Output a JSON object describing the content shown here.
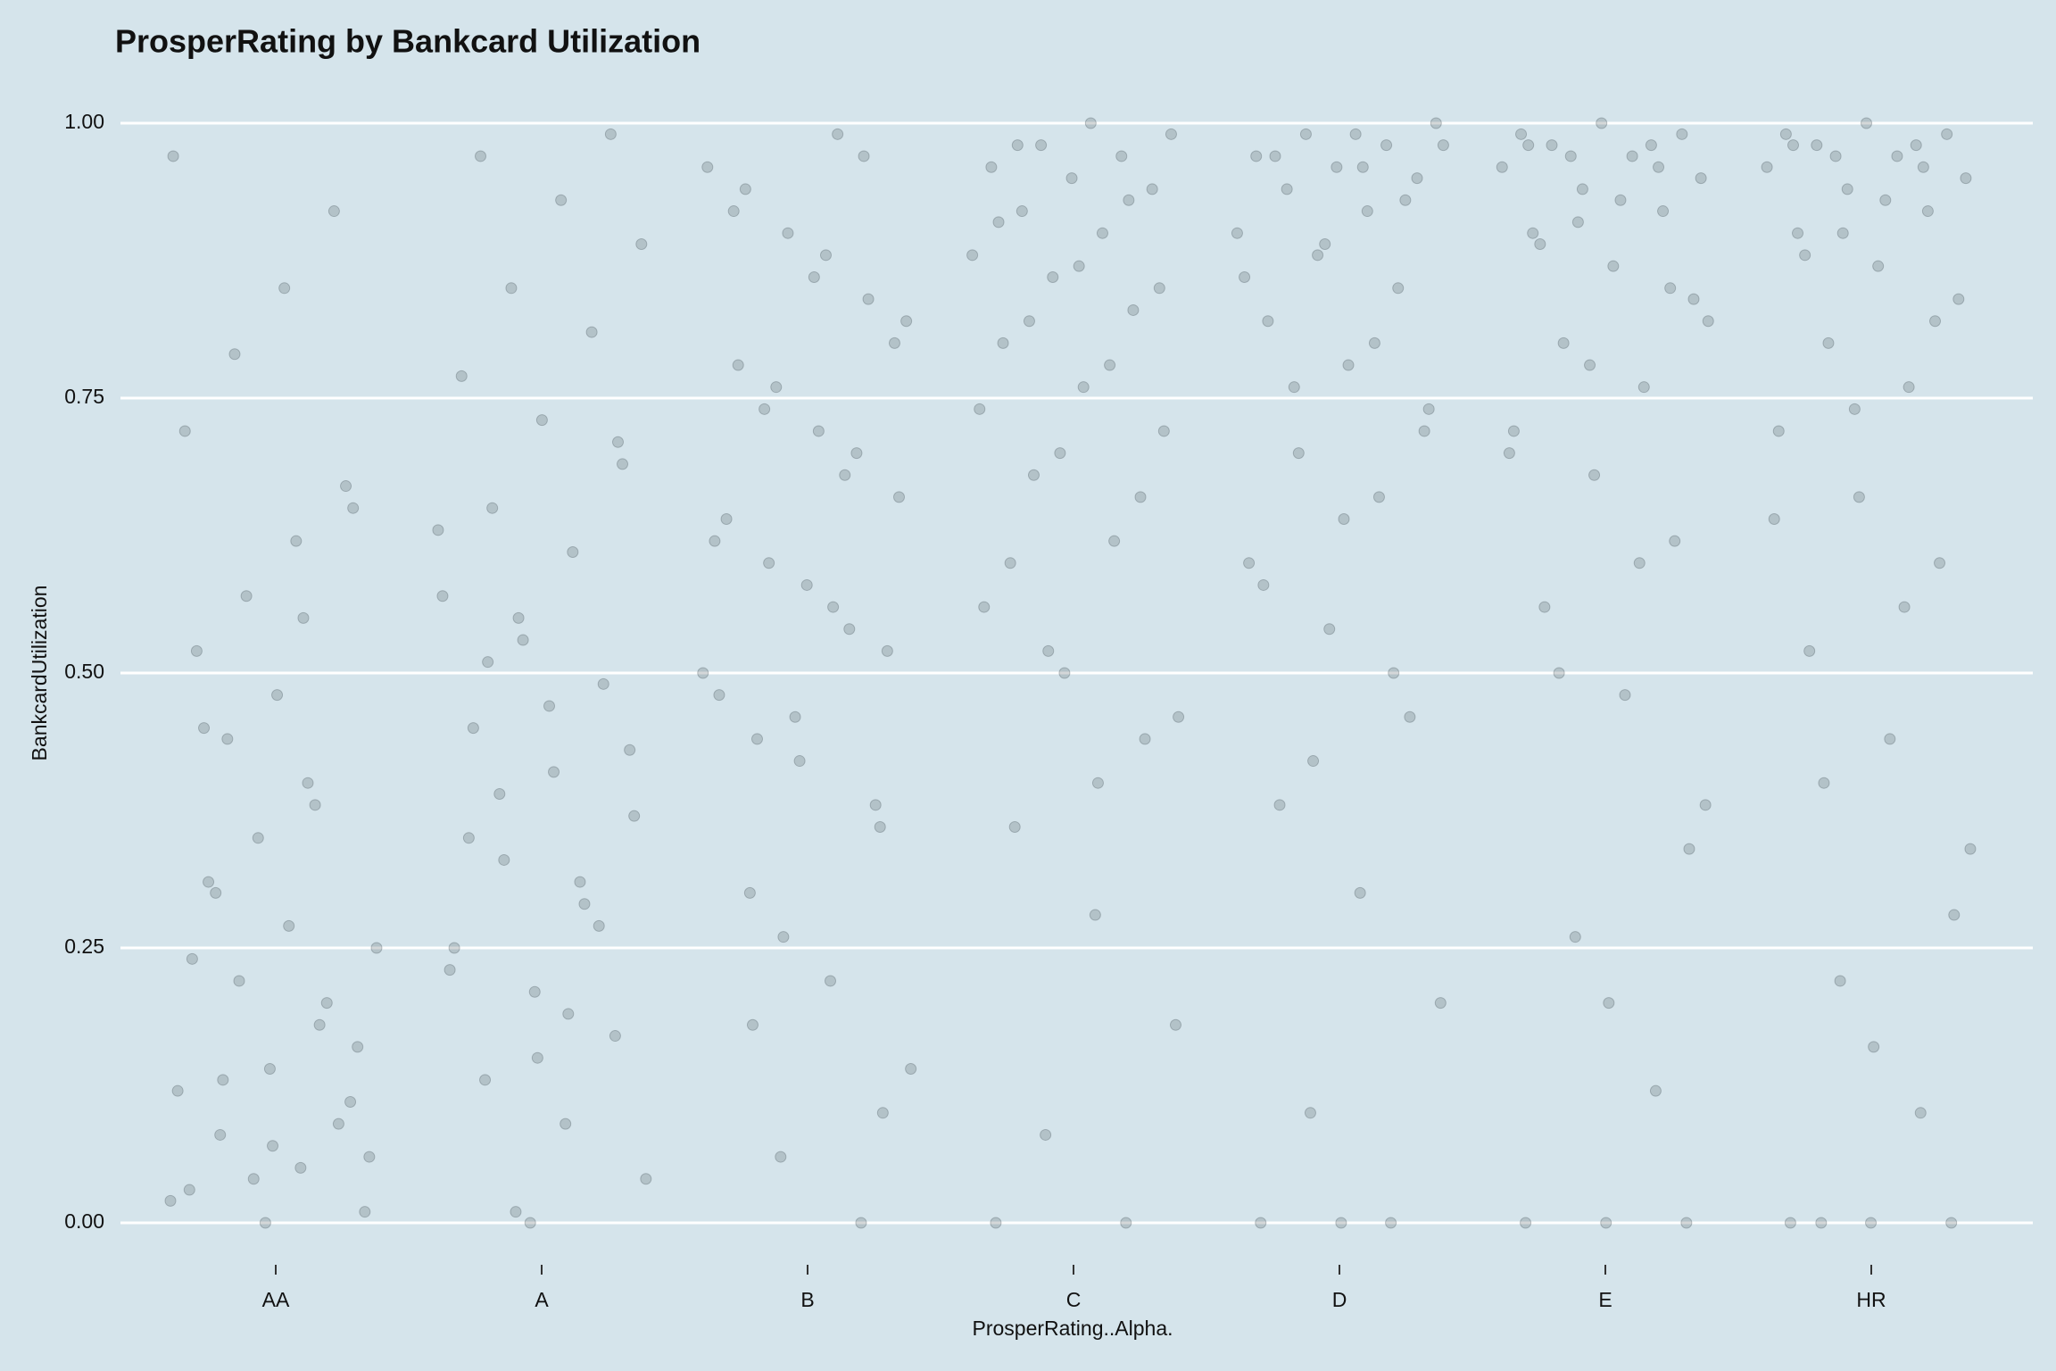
{
  "chart_data": {
    "type": "strip",
    "title": "ProsperRating by Bankcard Utilization",
    "x_label": "ProsperRating..Alpha.",
    "y_label": "BankcardUtilization",
    "categories": [
      "AA",
      "A",
      "B",
      "C",
      "D",
      "E",
      "HR"
    ],
    "color": "#3a4a4f",
    "values": [
      [
        0.02,
        0.05,
        0.08,
        0.11,
        0.14,
        0.03,
        0.18,
        0.22,
        0.06,
        0.27,
        0.31,
        0.09,
        0.35,
        0.12,
        0.4,
        0.44,
        0.16,
        0.48,
        0.52,
        0.2,
        0.57,
        0.25,
        0.62,
        0.3,
        0.67,
        0.0,
        0.72,
        0.38,
        0.79,
        0.01,
        0.85,
        0.45,
        0.92,
        0.04,
        0.97,
        0.55,
        0.13,
        0.65,
        0.07,
        0.24
      ],
      [
        0.01,
        0.04,
        0.09,
        0.13,
        0.17,
        0.21,
        0.25,
        0.29,
        0.33,
        0.37,
        0.41,
        0.45,
        0.49,
        0.53,
        0.57,
        0.61,
        0.65,
        0.69,
        0.73,
        0.77,
        0.81,
        0.85,
        0.89,
        0.93,
        0.97,
        0.99,
        0.0,
        0.23,
        0.31,
        0.39,
        0.43,
        0.47,
        0.35,
        0.27,
        0.55,
        0.63,
        0.19,
        0.51,
        0.71,
        0.15
      ],
      [
        0.0,
        0.06,
        0.14,
        0.22,
        0.3,
        0.36,
        0.42,
        0.48,
        0.54,
        0.6,
        0.66,
        0.72,
        0.78,
        0.84,
        0.9,
        0.96,
        0.99,
        0.44,
        0.52,
        0.58,
        0.64,
        0.7,
        0.76,
        0.82,
        0.88,
        0.94,
        0.38,
        0.46,
        0.62,
        0.68,
        0.74,
        0.8,
        0.86,
        0.92,
        0.97,
        0.26,
        0.5,
        0.56,
        0.18,
        0.1
      ],
      [
        0.0,
        0.0,
        0.08,
        0.18,
        0.28,
        0.36,
        0.44,
        0.5,
        0.56,
        0.62,
        0.68,
        0.72,
        0.76,
        0.8,
        0.83,
        0.86,
        0.88,
        0.9,
        0.92,
        0.94,
        0.95,
        0.96,
        0.97,
        0.98,
        0.99,
        1.0,
        0.6,
        0.66,
        0.7,
        0.74,
        0.78,
        0.82,
        0.85,
        0.87,
        0.91,
        0.93,
        0.52,
        0.46,
        0.4,
        0.98
      ],
      [
        0.0,
        0.0,
        0.0,
        0.1,
        0.2,
        0.3,
        0.38,
        0.46,
        0.54,
        0.6,
        0.66,
        0.7,
        0.74,
        0.78,
        0.82,
        0.85,
        0.88,
        0.9,
        0.92,
        0.94,
        0.95,
        0.96,
        0.97,
        0.98,
        0.99,
        1.0,
        0.99,
        0.97,
        0.93,
        0.89,
        0.86,
        0.8,
        0.76,
        0.72,
        0.64,
        0.58,
        0.5,
        0.42,
        0.98,
        0.96
      ],
      [
        0.0,
        0.0,
        0.0,
        0.12,
        0.26,
        0.38,
        0.48,
        0.56,
        0.62,
        0.68,
        0.72,
        0.76,
        0.8,
        0.84,
        0.87,
        0.9,
        0.92,
        0.94,
        0.96,
        0.97,
        0.98,
        0.99,
        1.0,
        0.99,
        0.98,
        0.97,
        0.95,
        0.93,
        0.89,
        0.85,
        0.78,
        0.7,
        0.6,
        0.5,
        0.34,
        0.2,
        0.98,
        0.96,
        0.91,
        0.82
      ],
      [
        0.0,
        0.0,
        0.0,
        0.0,
        0.1,
        0.22,
        0.34,
        0.44,
        0.52,
        0.6,
        0.66,
        0.72,
        0.76,
        0.8,
        0.84,
        0.87,
        0.9,
        0.92,
        0.94,
        0.96,
        0.97,
        0.98,
        0.99,
        1.0,
        0.99,
        0.98,
        0.97,
        0.95,
        0.93,
        0.88,
        0.82,
        0.74,
        0.64,
        0.56,
        0.4,
        0.28,
        0.16,
        0.98,
        0.96,
        0.9
      ]
    ],
    "ylim": [
      0,
      1
    ],
    "yticks": [
      {
        "value": 0,
        "label": "0.00"
      },
      {
        "value": 0.25,
        "label": "0.25"
      },
      {
        "value": 0.5,
        "label": "0.50"
      },
      {
        "value": 0.75,
        "label": "0.75"
      },
      {
        "value": 1,
        "label": "1.00"
      }
    ],
    "grid": true
  }
}
